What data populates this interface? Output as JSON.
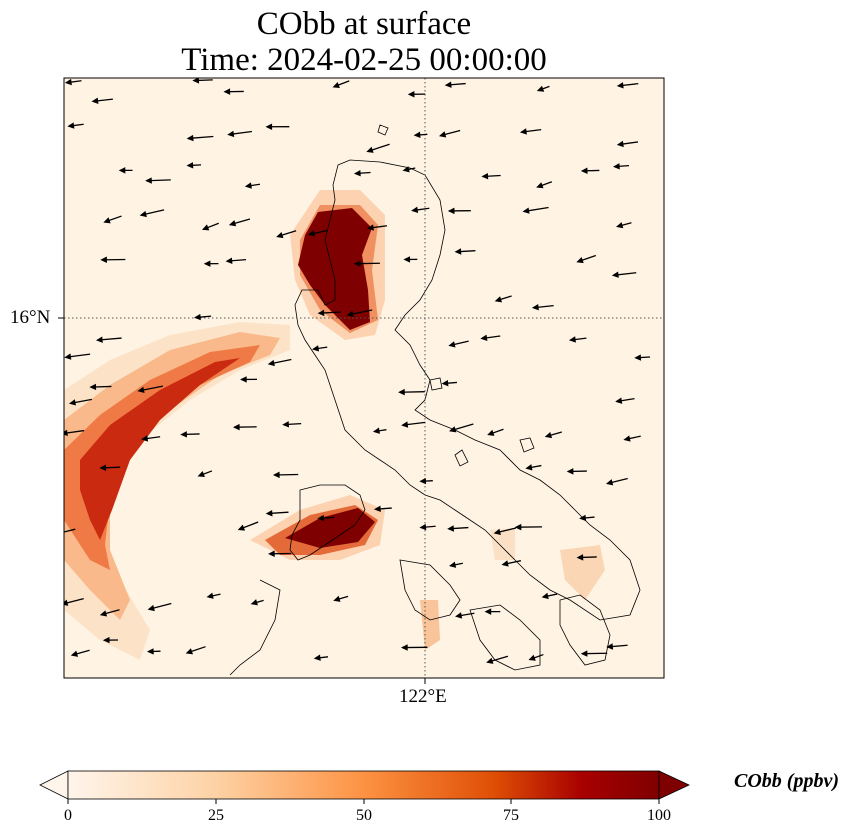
{
  "title": {
    "line1": "CObb at surface",
    "line2": "Time: 2024-02-25 00:00:00"
  },
  "axes": {
    "lat_label": "16°N",
    "lon_label": "122°E"
  },
  "colorbar": {
    "label": "CObb (ppbv)",
    "ticks": [
      "0",
      "25",
      "50",
      "75",
      "100"
    ],
    "min": 0,
    "max": 100,
    "extend": "both",
    "colormap": [
      "#fff5eb",
      "#fdd2a5",
      "#fd9243",
      "#df4f05",
      "#a80000",
      "#7f0000"
    ]
  },
  "map": {
    "gridlines": "dotted",
    "land_outline_color": "#000000",
    "wind_arrow_color": "#000000",
    "prevailing_wind": "from northeast"
  }
}
